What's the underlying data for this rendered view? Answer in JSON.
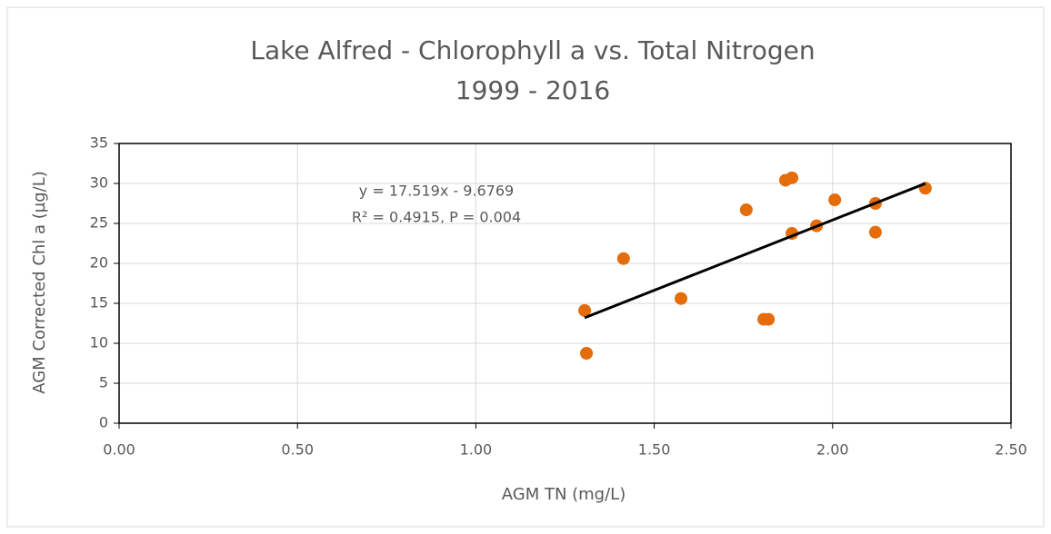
{
  "chart_data": {
    "type": "scatter",
    "title": "Lake Alfred - Chlorophyll a vs. Total Nitrogen",
    "subtitle": "1999 - 2016",
    "x_label": "AGM TN (mg/L)",
    "y_label": "AGM Corrected Chl a (µg/L)",
    "annotations": [
      "y = 17.519x - 9.6769",
      "R² = 0.4915, P = 0.004"
    ],
    "series": [
      {
        "color": "#e46c0a",
        "x": [
          1.305,
          1.31,
          1.414,
          1.575,
          1.758,
          1.807,
          1.82,
          1.868,
          1.886,
          1.886,
          1.955,
          2.006,
          2.12,
          2.12,
          2.26
        ],
        "values": [
          14.1,
          8.75,
          20.6,
          15.6,
          26.7,
          13.0,
          13.0,
          30.4,
          30.7,
          23.75,
          24.7,
          27.95,
          27.5,
          23.9,
          29.4
        ]
      }
    ],
    "trendline": {
      "color": "#000000",
      "x": [
        1.305,
        2.26
      ],
      "values": [
        13.2,
        30.0
      ]
    },
    "xlim": [
      0,
      2.5
    ],
    "xticks": [
      {
        "value": 0,
        "label": "0.00"
      },
      {
        "value": 0.5,
        "label": "0.50"
      },
      {
        "value": 1,
        "label": "1.00"
      },
      {
        "value": 1.5,
        "label": "1.50"
      },
      {
        "value": 2,
        "label": "2.00"
      },
      {
        "value": 2.5,
        "label": "2.50"
      }
    ],
    "ylim": [
      0,
      35
    ],
    "yticks": [
      0,
      5,
      10,
      15,
      20,
      25,
      30,
      35
    ],
    "grid": true
  }
}
